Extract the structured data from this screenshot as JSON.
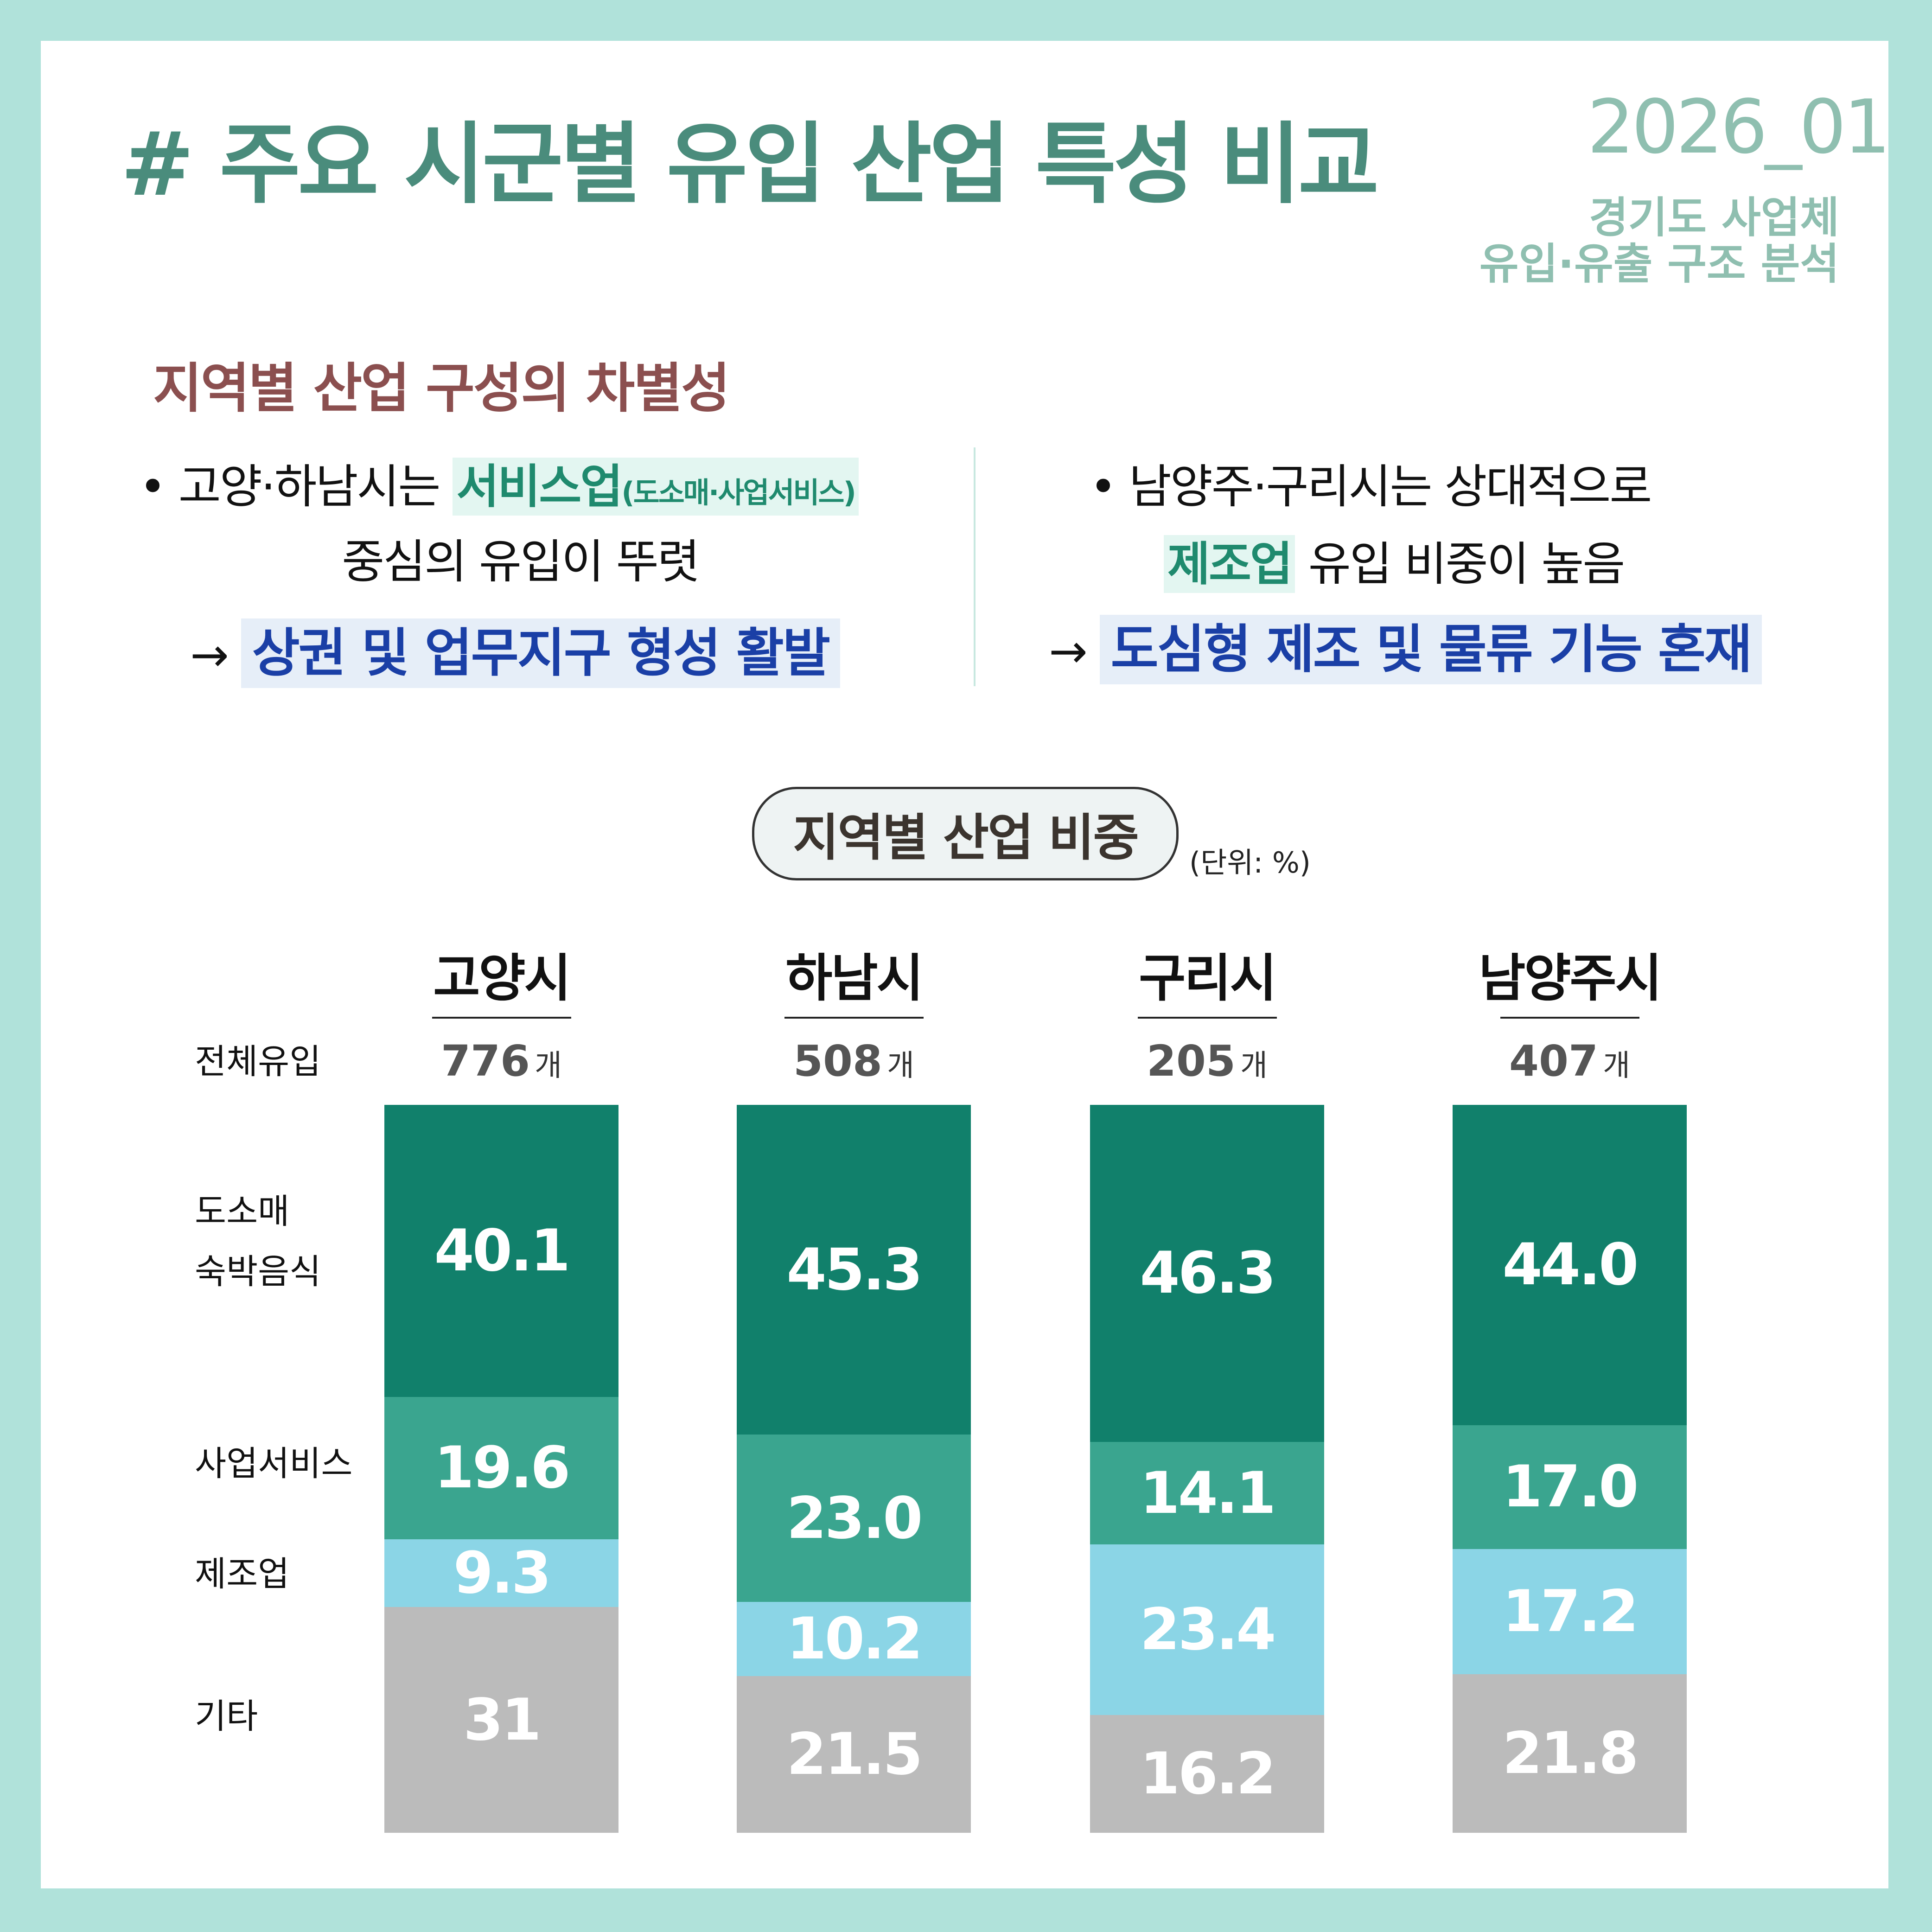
{
  "header": {
    "title": "# 주요 시군별 유입 산업 특성 비교",
    "date": "2026_01",
    "subtitle1": "경기도 사업체",
    "subtitle2": "유입·유출 구조 분석"
  },
  "summary": {
    "heading": "지역별 산업 구성의 차별성",
    "left": {
      "line1_prefix": "• 고양·하남시는 ",
      "line1_highlight": "서비스업",
      "line1_note": "(도소매·사업서비스)",
      "line2": "중심의 유입이 뚜렷",
      "arrow": "→",
      "conclusion": "상권 및 업무지구 형성 활발"
    },
    "right": {
      "line1": "• 남양주·구리시는 상대적으로",
      "line2_highlight": "제조업",
      "line2_rest": " 유입 비중이 높음",
      "arrow": "→",
      "conclusion": "도심형 제조 및 물류 기능 혼재"
    }
  },
  "chart_data": {
    "type": "bar",
    "stacked": true,
    "title": "지역별 산업 비중",
    "unit": "(단위: %)",
    "total_label": "전체유입",
    "count_unit": "개",
    "categories": [
      "고양시",
      "하남시",
      "구리시",
      "남양주시"
    ],
    "totals": [
      776,
      508,
      205,
      407
    ],
    "row_labels": {
      "retail": [
        "도소매",
        "숙박음식"
      ],
      "business": "사업서비스",
      "manufacturing": "제조업",
      "other": "기타"
    },
    "series": [
      {
        "key": "retail",
        "values": [
          "40.1",
          "45.3",
          "46.3",
          "44.0"
        ],
        "color": "#11806b"
      },
      {
        "key": "business",
        "values": [
          "19.6",
          "23.0",
          "14.1",
          "17.0"
        ],
        "color": "#3aa58f"
      },
      {
        "key": "manufacturing",
        "values": [
          "9.3",
          "10.2",
          "23.4",
          "17.2"
        ],
        "color": "#8bd5e6"
      },
      {
        "key": "other",
        "values": [
          "31",
          "21.5",
          "16.2",
          "21.8"
        ],
        "color": "#bbbbbb"
      }
    ]
  }
}
